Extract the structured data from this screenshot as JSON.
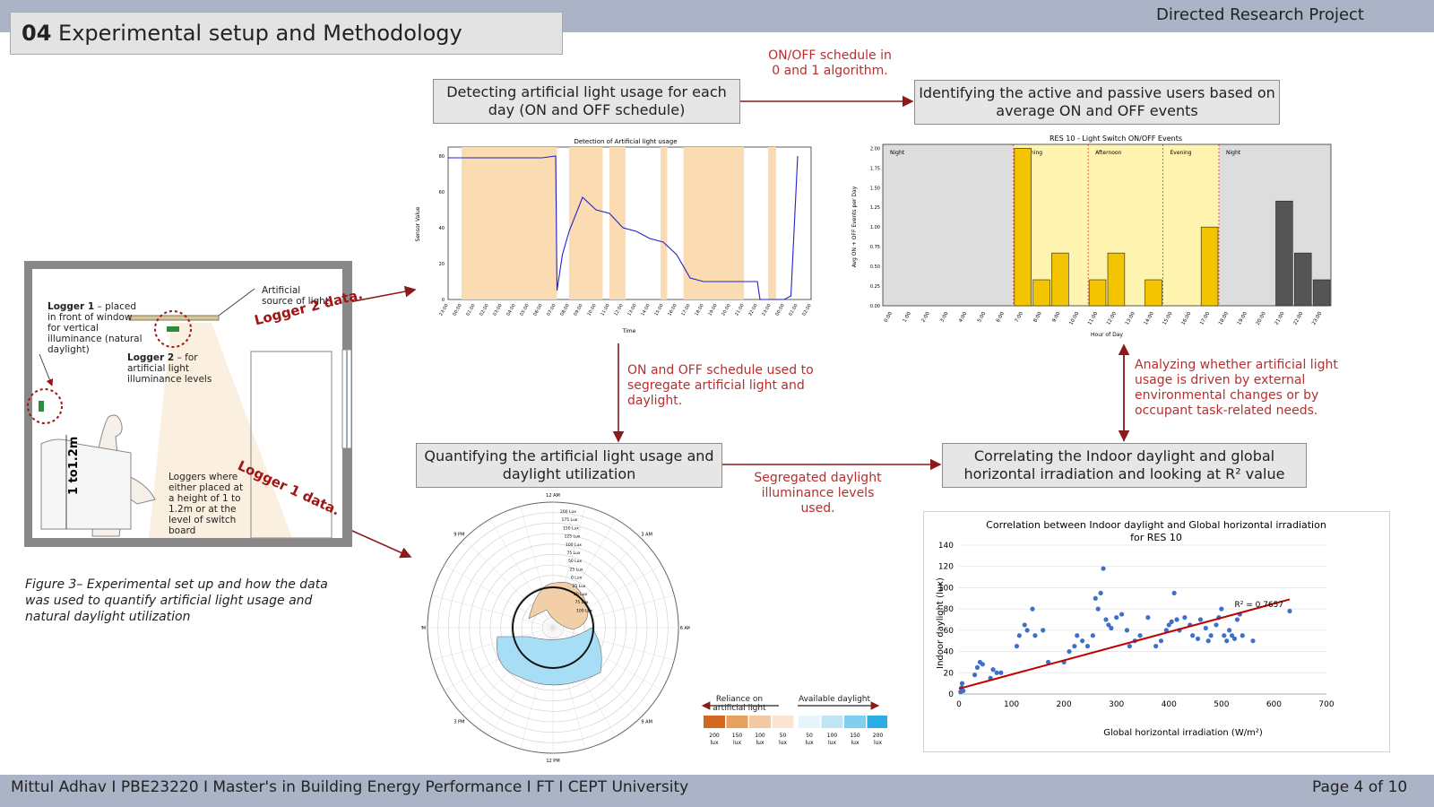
{
  "header": {
    "project": "Directed Research Project"
  },
  "title": {
    "number": "04",
    "text": " Experimental setup and Methodology"
  },
  "footer": {
    "text": "Mittul Adhav I PBE23220 I Master's in Building Energy Performance I FT I CEPT University",
    "page": "Page 4 of 10"
  },
  "flow": {
    "box1": "Detecting artificial light usage for each day (ON and OFF schedule)",
    "box2": "Identifying the active and passive users based on average ON and OFF events",
    "box3": "Quantifying the artificial light usage and daylight utilization",
    "box4": "Correlating the Indoor daylight and global horizontal irradiation and looking at R² value",
    "arrow1": "ON/OFF schedule in 0 and 1 algorithm.",
    "arrow2": "ON and OFF schedule used to segregate artificial light and daylight.",
    "arrow3": "Segregated daylight illuminance levels used.",
    "arrow4": "Analyzing whether artificial light usage is driven by external environmental changes or by occupant task-related needs."
  },
  "diagram": {
    "logger1_bold": "Logger 1",
    "logger1_text": " – placed in front of window for vertical illuminance (natural daylight)",
    "logger2_bold": "Logger 2",
    "logger2_text": " – for artificial light illuminance levels",
    "artificial": "Artificial source of light",
    "height": "1 to1.2m",
    "loggers_note": "Loggers where either placed at a height of 1 to 1.2m or at the level of switch board",
    "logger2_data": "Logger 2 data.",
    "logger1_data": "Logger 1 data."
  },
  "caption": "Figure 3– Experimental set up and how the data was used to quantify artificial light usage and natural daylight utilization",
  "chart1": {
    "title": "Detection of Artificial light usage",
    "ylabel": "Sensor Value",
    "xlabel": "Time",
    "yticks": [
      "0",
      "20",
      "40",
      "60",
      "80"
    ],
    "xticks": [
      "23:00",
      "00:00",
      "01:00",
      "02:00",
      "03:00",
      "04:00",
      "05:00",
      "06:00",
      "07:00",
      "08:00",
      "09:00",
      "10:00",
      "11:00",
      "12:00",
      "13:00",
      "14:00",
      "15:00",
      "16:00",
      "17:00",
      "18:00",
      "19:00",
      "20:00",
      "21:00",
      "22:00",
      "23:00",
      "00:00",
      "01:00",
      "02:00"
    ]
  },
  "chart2": {
    "title": "RES 10 - Light Switch ON/OFF Events",
    "ylabel": "Avg ON + OFF Events per Day",
    "xlabel": "Hour of Day",
    "yticks": [
      "0.00",
      "0.25",
      "0.50",
      "0.75",
      "1.00",
      "1.25",
      "1.50",
      "1.75",
      "2.00"
    ],
    "periods": [
      "Night",
      "Morning",
      "Afternoon",
      "Evening",
      "Night"
    ]
  },
  "chart3": {
    "hours": [
      "12 AM",
      "3 AM",
      "6 AM",
      "9 AM",
      "12 PM",
      "3 PM",
      "6 PM",
      "9 PM"
    ],
    "rings": [
      "200 Lux",
      "175 Lux",
      "150 Lux",
      "125 Lux",
      "100 Lux",
      "75 Lux",
      "50 Lux",
      "25 Lux",
      "0 Lux",
      "25 Lux",
      "50 Lux",
      "75 Lux",
      "100 Lux"
    ]
  },
  "legend": {
    "left": "Reliance on artificial light",
    "right": "Available daylight",
    "labels": [
      "200 lux",
      "150 lux",
      "100 lux",
      "50 lux",
      "50 lux",
      "100 lux",
      "150 lux",
      "200 lux"
    ],
    "colors": [
      "#d2691e",
      "#e8a060",
      "#f2c9a0",
      "#fae5d3",
      "#e6f4fb",
      "#bfe5f7",
      "#7fd0f0",
      "#29aee6"
    ]
  },
  "chart4": {
    "title_line1": "Correlation between Indoor daylight and Global horizontal irradiation",
    "title_line2": "for RES 10",
    "xlabel": "Global horizontal irradiation (W/m²)",
    "ylabel": "Indoor daylight (lux)",
    "r2": "R² = 0.7657",
    "xticks": [
      "0",
      "100",
      "200",
      "300",
      "400",
      "500",
      "600",
      "700"
    ],
    "yticks": [
      "0",
      "20",
      "40",
      "60",
      "80",
      "100",
      "120",
      "140"
    ]
  },
  "chart_data": [
    {
      "type": "line",
      "title": "Detection of Artificial light usage",
      "xlabel": "Time",
      "ylabel": "Sensor Value",
      "ylim": [
        0,
        85
      ],
      "x": [
        0,
        1,
        2,
        3,
        4,
        5,
        6,
        7,
        8,
        8.1,
        8.5,
        9,
        10,
        11,
        12,
        13,
        14,
        15,
        16,
        17,
        18,
        19,
        20,
        21,
        22,
        23,
        23.2,
        24,
        25,
        25.5,
        26
      ],
      "series": [
        {
          "values": [
            79,
            79,
            79,
            79,
            79,
            79,
            79,
            79,
            80,
            5,
            25,
            38,
            57,
            50,
            48,
            40,
            38,
            34,
            32,
            25,
            12,
            10,
            10,
            10,
            10,
            10,
            0,
            0,
            0,
            2,
            80
          ]
        }
      ]
    },
    {
      "type": "bar",
      "title": "RES 10 - Light Switch ON/OFF Events",
      "xlabel": "Hour of Day",
      "ylabel": "Avg ON + OFF Events per Day",
      "ylim": [
        0,
        2.05
      ],
      "categories": [
        "0:00",
        "1:00",
        "2:00",
        "3:00",
        "4:00",
        "5:00",
        "6:00",
        "7:00",
        "8:00",
        "9:00",
        "10:00",
        "11:00",
        "12:00",
        "13:00",
        "14:00",
        "15:00",
        "16:00",
        "17:00",
        "18:00",
        "19:00",
        "20:00",
        "21:00",
        "22:00",
        "23:00"
      ],
      "values": [
        0,
        0,
        0,
        0,
        0,
        0,
        0,
        2.0,
        0.33,
        0.67,
        0,
        0.33,
        0.67,
        0,
        0.33,
        0,
        0,
        1.0,
        0,
        0,
        0,
        1.33,
        0.67,
        0.33
      ]
    },
    {
      "type": "scatter",
      "title": "Correlation between Indoor daylight and Global horizontal irradiation for RES 10",
      "xlabel": "Global horizontal irradiation (W/m²)",
      "ylabel": "Indoor daylight (lux)",
      "xlim": [
        0,
        700
      ],
      "ylim": [
        0,
        140
      ],
      "r2": 0.7657,
      "trendline": [
        [
          0,
          5
        ],
        [
          630,
          89
        ]
      ],
      "points": [
        [
          3,
          2
        ],
        [
          5,
          6
        ],
        [
          6,
          10
        ],
        [
          8,
          3
        ],
        [
          30,
          18
        ],
        [
          35,
          25
        ],
        [
          40,
          30
        ],
        [
          45,
          28
        ],
        [
          60,
          15
        ],
        [
          65,
          23
        ],
        [
          72,
          20
        ],
        [
          80,
          20
        ],
        [
          110,
          45
        ],
        [
          115,
          55
        ],
        [
          125,
          65
        ],
        [
          130,
          60
        ],
        [
          140,
          80
        ],
        [
          145,
          55
        ],
        [
          160,
          60
        ],
        [
          170,
          30
        ],
        [
          200,
          30
        ],
        [
          210,
          40
        ],
        [
          220,
          45
        ],
        [
          225,
          55
        ],
        [
          235,
          50
        ],
        [
          245,
          45
        ],
        [
          255,
          55
        ],
        [
          260,
          90
        ],
        [
          265,
          80
        ],
        [
          270,
          95
        ],
        [
          275,
          118
        ],
        [
          280,
          70
        ],
        [
          285,
          65
        ],
        [
          290,
          62
        ],
        [
          300,
          72
        ],
        [
          310,
          75
        ],
        [
          320,
          60
        ],
        [
          325,
          45
        ],
        [
          335,
          50
        ],
        [
          345,
          55
        ],
        [
          360,
          72
        ],
        [
          375,
          45
        ],
        [
          385,
          50
        ],
        [
          395,
          60
        ],
        [
          400,
          65
        ],
        [
          405,
          68
        ],
        [
          410,
          95
        ],
        [
          415,
          70
        ],
        [
          420,
          60
        ],
        [
          430,
          72
        ],
        [
          440,
          65
        ],
        [
          445,
          55
        ],
        [
          455,
          52
        ],
        [
          460,
          70
        ],
        [
          470,
          62
        ],
        [
          475,
          50
        ],
        [
          480,
          55
        ],
        [
          490,
          65
        ],
        [
          495,
          72
        ],
        [
          500,
          80
        ],
        [
          505,
          55
        ],
        [
          510,
          50
        ],
        [
          515,
          60
        ],
        [
          520,
          55
        ],
        [
          525,
          52
        ],
        [
          530,
          70
        ],
        [
          535,
          75
        ],
        [
          540,
          55
        ],
        [
          560,
          50
        ],
        [
          630,
          78
        ]
      ]
    }
  ]
}
